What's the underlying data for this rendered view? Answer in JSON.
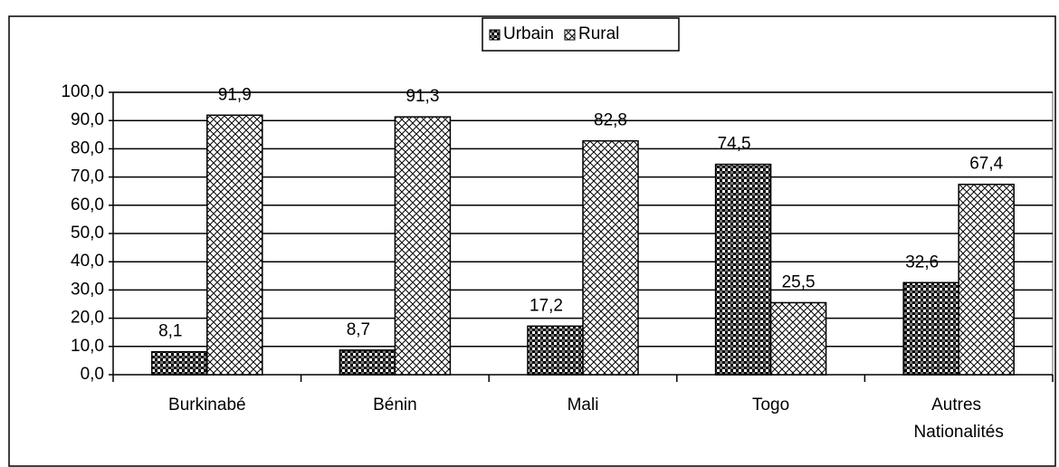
{
  "chart_data": {
    "type": "bar",
    "categories": [
      "Burkinabé",
      "Bénin",
      "Mali",
      "Togo",
      "Autres Nationalités"
    ],
    "series": [
      {
        "name": "Urbain",
        "color": "#000000",
        "values": [
          8.1,
          8.7,
          17.2,
          74.5,
          32.6
        ],
        "value_labels": [
          "8,1",
          "8,7",
          "17,2",
          "74,5",
          "32,6"
        ]
      },
      {
        "name": "Rural",
        "color": "#ffffff",
        "values": [
          91.9,
          91.3,
          82.8,
          25.5,
          67.4
        ],
        "value_labels": [
          "91,9",
          "91,3",
          "82,8",
          "25,5",
          "67,4"
        ]
      }
    ],
    "ylim": [
      0,
      100
    ],
    "yticks": [
      {
        "value": 0,
        "label": "0,0"
      },
      {
        "value": 10,
        "label": "10,0"
      },
      {
        "value": 20,
        "label": "20,0"
      },
      {
        "value": 30,
        "label": "30,0"
      },
      {
        "value": 40,
        "label": "40,0"
      },
      {
        "value": 50,
        "label": "50,0"
      },
      {
        "value": 60,
        "label": "60,0"
      },
      {
        "value": 70,
        "label": "70,0"
      },
      {
        "value": 80,
        "label": "80,0"
      },
      {
        "value": 90,
        "label": "90,0"
      },
      {
        "value": 100,
        "label": "100,0"
      }
    ],
    "grid": true,
    "legend": "top"
  }
}
